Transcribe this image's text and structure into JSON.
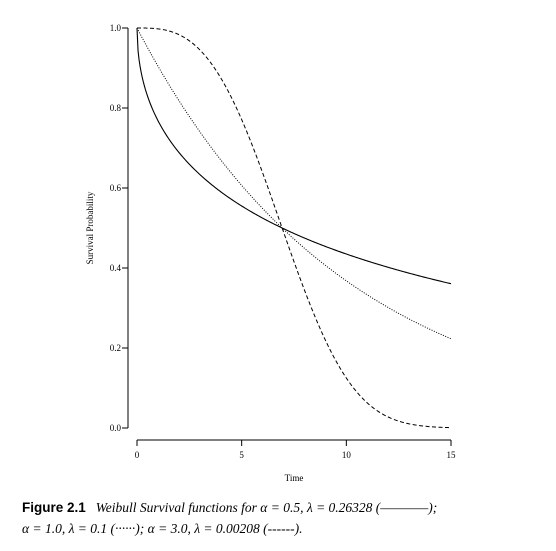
{
  "chart_data": {
    "type": "line",
    "xlabel": "Time",
    "ylabel": "Survival Probability",
    "xlim": [
      0,
      15
    ],
    "ylim": [
      0,
      1
    ],
    "x_ticks": [
      "0",
      "5",
      "10",
      "15"
    ],
    "y_ticks": [
      "0.0",
      "0.2",
      "0.4",
      "0.6",
      "0.8",
      "1.0"
    ],
    "grid": false,
    "series": [
      {
        "alpha": 0.5,
        "lambda": 0.26328,
        "style": "solid",
        "x": [
          0,
          0.25,
          0.5,
          1,
          1.5,
          2,
          3,
          4,
          5,
          6,
          7,
          8,
          9,
          10,
          11,
          12,
          13,
          14,
          15
        ],
        "values": [
          1.0,
          0.877,
          0.83,
          0.768,
          0.724,
          0.689,
          0.634,
          0.591,
          0.555,
          0.525,
          0.499,
          0.475,
          0.454,
          0.435,
          0.418,
          0.402,
          0.387,
          0.373,
          0.361
        ]
      },
      {
        "alpha": 1.0,
        "lambda": 0.1,
        "style": "dotted",
        "x": [
          0,
          1,
          2,
          3,
          4,
          5,
          6,
          7,
          8,
          9,
          10,
          11,
          12,
          13,
          14,
          15
        ],
        "values": [
          1.0,
          0.905,
          0.819,
          0.741,
          0.67,
          0.607,
          0.549,
          0.497,
          0.449,
          0.407,
          0.368,
          0.333,
          0.301,
          0.273,
          0.247,
          0.223
        ]
      },
      {
        "alpha": 3.0,
        "lambda": 0.00208,
        "style": "dashed",
        "x": [
          0,
          1,
          2,
          3,
          4,
          5,
          6,
          7,
          8,
          9,
          10,
          11,
          12,
          13,
          14,
          15
        ],
        "values": [
          1.0,
          0.998,
          0.984,
          0.945,
          0.875,
          0.771,
          0.638,
          0.49,
          0.345,
          0.219,
          0.125,
          0.063,
          0.027,
          0.01,
          0.003,
          0.001
        ]
      }
    ]
  },
  "caption": {
    "label": "Figure 2.1",
    "line1": "Weibull Survival functions for α = 0.5, λ = 0.26328 (————);",
    "line2": "α = 1.0, λ = 0.1 (······); α = 3.0, λ = 0.00208 (------)."
  }
}
